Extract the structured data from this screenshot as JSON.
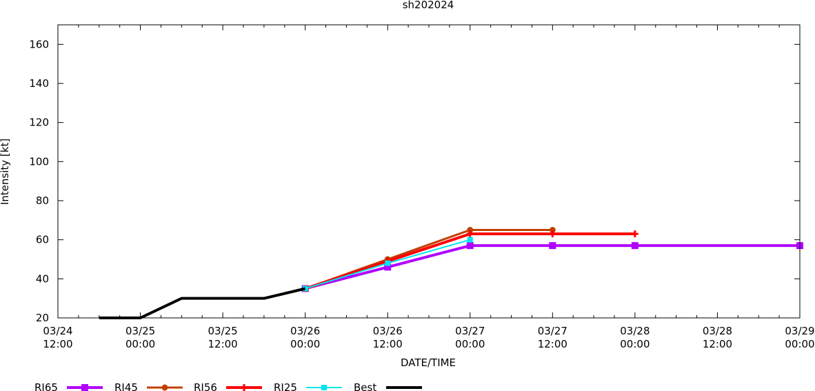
{
  "chart_data": {
    "type": "line",
    "title": "sh202024",
    "xlabel": "DATE/TIME",
    "ylabel": "Intensity [kt]",
    "ylim": [
      20,
      170
    ],
    "yticks": [
      20,
      40,
      60,
      80,
      100,
      120,
      140,
      160
    ],
    "xlim_hours": [
      0,
      108
    ],
    "xticks": [
      {
        "hour": 0,
        "date": "03/24",
        "time": "12:00"
      },
      {
        "hour": 12,
        "date": "03/25",
        "time": "00:00"
      },
      {
        "hour": 24,
        "date": "03/25",
        "time": "12:00"
      },
      {
        "hour": 36,
        "date": "03/26",
        "time": "00:00"
      },
      {
        "hour": 48,
        "date": "03/26",
        "time": "12:00"
      },
      {
        "hour": 60,
        "date": "03/27",
        "time": "00:00"
      },
      {
        "hour": 72,
        "date": "03/27",
        "time": "12:00"
      },
      {
        "hour": 84,
        "date": "03/28",
        "time": "00:00"
      },
      {
        "hour": 96,
        "date": "03/28",
        "time": "12:00"
      },
      {
        "hour": 108,
        "date": "03/29",
        "time": "00:00"
      }
    ],
    "legend_position": "bottom",
    "series": [
      {
        "name": "RI65",
        "color": "#b000ff",
        "marker": "square",
        "width": 4,
        "points": [
          [
            36,
            35
          ],
          [
            48,
            46
          ],
          [
            60,
            57
          ],
          [
            72,
            57
          ],
          [
            84,
            57
          ],
          [
            108,
            57
          ]
        ]
      },
      {
        "name": "RI45",
        "color": "#c04000",
        "marker": "circle",
        "width": 3,
        "points": [
          [
            36,
            35
          ],
          [
            48,
            50
          ],
          [
            60,
            65
          ],
          [
            72,
            65
          ]
        ]
      },
      {
        "name": "RI56",
        "color": "#ff0000",
        "marker": "plus",
        "width": 4,
        "points": [
          [
            36,
            35
          ],
          [
            48,
            49
          ],
          [
            60,
            63
          ],
          [
            72,
            63
          ],
          [
            84,
            63
          ]
        ]
      },
      {
        "name": "RI25",
        "color": "#00e5ee",
        "marker": "small-square",
        "width": 2,
        "points": [
          [
            36,
            35
          ],
          [
            48,
            48
          ],
          [
            60,
            60
          ]
        ]
      },
      {
        "name": "Best",
        "color": "#000000",
        "marker": "none",
        "width": 4,
        "points": [
          [
            6,
            20
          ],
          [
            12,
            20
          ],
          [
            18,
            30
          ],
          [
            24,
            30
          ],
          [
            30,
            30
          ],
          [
            36,
            35
          ]
        ]
      }
    ]
  }
}
